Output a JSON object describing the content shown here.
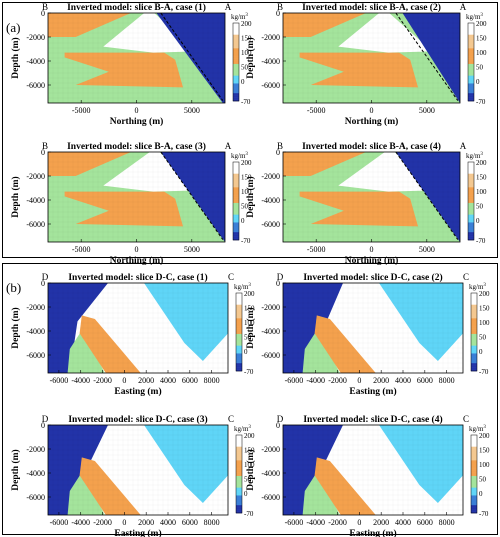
{
  "panels": [
    {
      "letter": "(a)"
    },
    {
      "letter": "(b)"
    }
  ],
  "colorbar": {
    "unit_base": "kg/m",
    "unit_exp": "3",
    "ticks": [
      "200",
      "150",
      "100",
      "50",
      "0",
      "-70"
    ],
    "values": [
      200,
      150,
      100,
      50,
      0,
      -70
    ]
  },
  "colors": {
    "orange": "#f4a14d",
    "green": "#a4e49c",
    "white": "#ffffff",
    "darkblue": "#2233a8",
    "cyan": "#5fd5f7"
  },
  "chart_data": [
    {
      "type": "heatmap",
      "title": "Inverted model: slice B-A, case (1)",
      "xlabel": "Northing (m)",
      "ylabel": "Depth (m)",
      "xlim": [
        -8000,
        8000
      ],
      "ylim": [
        -7500,
        0
      ],
      "xticks": [
        "-5000",
        "0",
        "5000"
      ],
      "yticks": [
        "0",
        "-2000",
        "-4000",
        "-6000"
      ],
      "left_label": "B",
      "right_label": "A",
      "layers": [
        "orange",
        "green",
        "orange",
        "green"
      ],
      "dashed_line": true
    },
    {
      "type": "heatmap",
      "title": "Inverted model: slice B-A, case (2)",
      "xlabel": "Northing (m)",
      "ylabel": "Depth (m)",
      "xlim": [
        -8000,
        8000
      ],
      "ylim": [
        -7500,
        0
      ],
      "xticks": [
        "-5000",
        "0",
        "5000"
      ],
      "yticks": [
        "0",
        "-2000",
        "-4000",
        "-6000"
      ],
      "left_label": "B",
      "right_label": "A",
      "layers": [
        "orange",
        "green",
        "orange",
        "green"
      ],
      "dashed_line": true
    },
    {
      "type": "heatmap",
      "title": "Inverted model: slice B-A, case (3)",
      "xlabel": "Northing (m)",
      "ylabel": "Depth (m)",
      "xlim": [
        -8000,
        8000
      ],
      "ylim": [
        -7500,
        0
      ],
      "xticks": [
        "-5000",
        "0",
        "5000"
      ],
      "yticks": [
        "0",
        "-2000",
        "-4000",
        "-6000"
      ],
      "left_label": "B",
      "right_label": "A",
      "layers": [
        "orange",
        "green",
        "orange",
        "green"
      ],
      "dashed_line": true
    },
    {
      "type": "heatmap",
      "title": "Inverted model: slice B-A, case (4)",
      "xlabel": "Northing (m)",
      "ylabel": "Depth (m)",
      "xlim": [
        -8000,
        8000
      ],
      "ylim": [
        -7500,
        0
      ],
      "xticks": [
        "-5000",
        "0",
        "5000"
      ],
      "yticks": [
        "0",
        "-2000",
        "-4000",
        "-6000"
      ],
      "left_label": "B",
      "right_label": "A",
      "layers": [
        "orange",
        "green",
        "orange",
        "green"
      ],
      "dashed_line": true
    },
    {
      "type": "heatmap",
      "title": "Inverted model: slice D-C, case (1)",
      "xlabel": "Easting (m)",
      "ylabel": "Depth (m)",
      "xlim": [
        -7000,
        9500
      ],
      "ylim": [
        -7500,
        0
      ],
      "xticks": [
        "-6000",
        "-4000",
        "-2000",
        "0",
        "2000",
        "4000",
        "6000",
        "8000"
      ],
      "yticks": [
        "0",
        "-2000",
        "-4000",
        "-6000"
      ],
      "left_label": "D",
      "right_label": "C",
      "layers": [
        "darkblue",
        "green",
        "orange",
        "white",
        "cyan"
      ]
    },
    {
      "type": "heatmap",
      "title": "Inverted model: slice D-C, case (2)",
      "xlabel": "Easting (m)",
      "ylabel": "Depth (m)",
      "xlim": [
        -7000,
        9500
      ],
      "ylim": [
        -7500,
        0
      ],
      "xticks": [
        "-6000",
        "-4000",
        "-2000",
        "0",
        "2000",
        "4000",
        "6000",
        "8000"
      ],
      "yticks": [
        "0",
        "-2000",
        "-4000",
        "-6000"
      ],
      "left_label": "D",
      "right_label": "C",
      "layers": [
        "darkblue",
        "green",
        "orange",
        "white",
        "cyan"
      ]
    },
    {
      "type": "heatmap",
      "title": "Inverted model: slice D-C, case (3)",
      "xlabel": "Easting (m)",
      "ylabel": "Depth (m)",
      "xlim": [
        -7000,
        9500
      ],
      "ylim": [
        -7500,
        0
      ],
      "xticks": [
        "-6000",
        "-4000",
        "-2000",
        "0",
        "2000",
        "4000",
        "6000",
        "8000"
      ],
      "yticks": [
        "0",
        "-2000",
        "-4000",
        "-6000"
      ],
      "left_label": "D",
      "right_label": "C",
      "layers": [
        "darkblue",
        "green",
        "orange",
        "white",
        "cyan"
      ]
    },
    {
      "type": "heatmap",
      "title": "Inverted model: slice D-C, case (4)",
      "xlabel": "Easting (m)",
      "ylabel": "Depth (m)",
      "xlim": [
        -7000,
        9500
      ],
      "ylim": [
        -7500,
        0
      ],
      "xticks": [
        "-6000",
        "-4000",
        "-2000",
        "0",
        "2000",
        "4000",
        "6000",
        "8000"
      ],
      "yticks": [
        "0",
        "-2000",
        "-4000",
        "-6000"
      ],
      "left_label": "D",
      "right_label": "C",
      "layers": [
        "darkblue",
        "green",
        "orange",
        "white",
        "cyan"
      ]
    }
  ]
}
